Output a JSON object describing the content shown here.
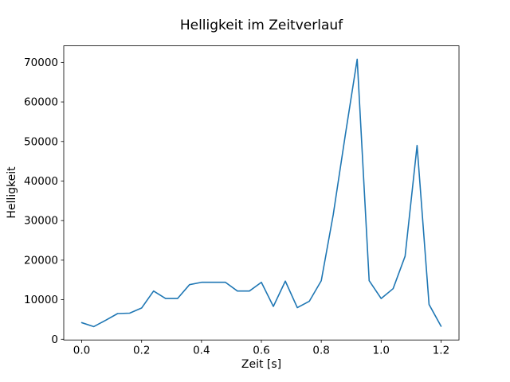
{
  "chart_data": {
    "type": "line",
    "title": "Helligkeit im Zeitverlauf",
    "xlabel": "Zeit [s]",
    "ylabel": "Helligkeit",
    "line_color": "#1f77b4",
    "grid": false,
    "legend": null,
    "x": [
      0.0,
      0.04,
      0.08,
      0.12,
      0.16,
      0.2,
      0.24,
      0.28,
      0.32,
      0.36,
      0.4,
      0.44,
      0.48,
      0.52,
      0.56,
      0.6,
      0.64,
      0.68,
      0.72,
      0.76,
      0.8,
      0.84,
      0.88,
      0.92,
      0.96,
      1.0,
      1.04,
      1.08,
      1.12,
      1.16,
      1.2
    ],
    "y": [
      4200,
      3200,
      4800,
      6500,
      6600,
      7900,
      12200,
      10300,
      10300,
      13800,
      14400,
      14400,
      14400,
      12200,
      12200,
      14400,
      8300,
      14700,
      8000,
      9600,
      14800,
      31500,
      51500,
      70800,
      14800,
      10300,
      12800,
      21000,
      49000,
      8800,
      3300
    ],
    "xticks": [
      0.0,
      0.2,
      0.4,
      0.6,
      0.8,
      1.0,
      1.2
    ],
    "xtick_labels": [
      "0.0",
      "0.2",
      "0.4",
      "0.6",
      "0.8",
      "1.0",
      "1.2"
    ],
    "yticks": [
      0,
      10000,
      20000,
      30000,
      40000,
      50000,
      60000,
      70000
    ],
    "ytick_labels": [
      "0",
      "10000",
      "20000",
      "30000",
      "40000",
      "50000",
      "60000",
      "70000"
    ],
    "xlim": [
      -0.06,
      1.26
    ],
    "ylim": [
      -180,
      74180
    ]
  }
}
